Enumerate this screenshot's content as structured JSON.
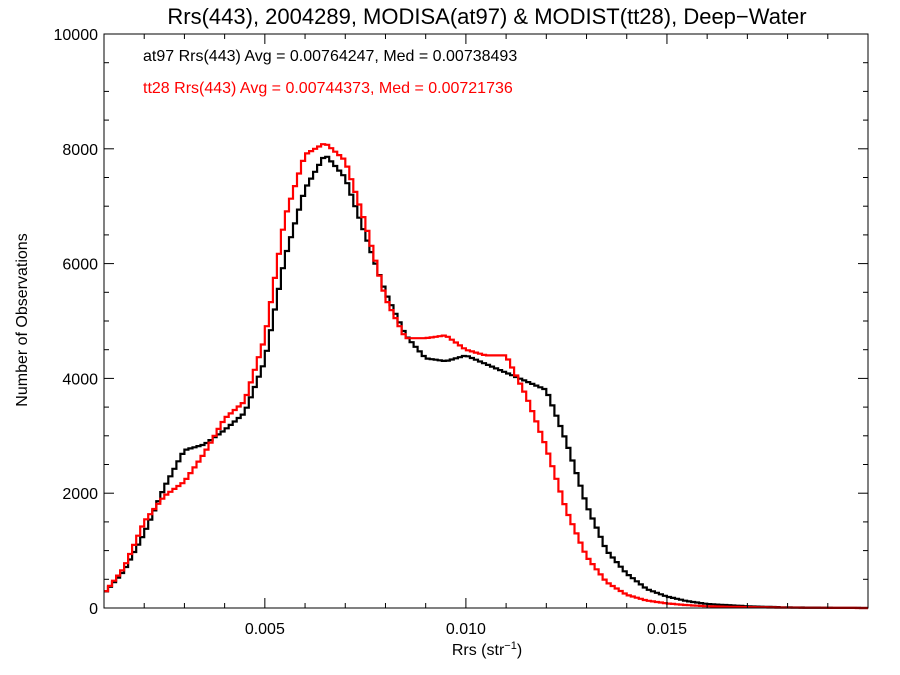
{
  "chart_data": {
    "type": "line",
    "title": "Rrs(443), 2004289, MODISA(at97) & MODIST(tt28), Deep−Water",
    "xlabel": "Rrs (str",
    "xlabel_sup": "−1",
    "xlabel_close": ")",
    "ylabel": "Number of Observations",
    "xlim": [
      0.001,
      0.02
    ],
    "ylim": [
      0,
      10000
    ],
    "x_ticks": [
      0.005,
      0.01,
      0.015
    ],
    "x_tick_labels": [
      "0.005",
      "0.010",
      "0.015"
    ],
    "y_ticks": [
      0,
      2000,
      4000,
      6000,
      8000,
      10000
    ],
    "y_tick_labels": [
      "0",
      "2000",
      "4000",
      "6000",
      "8000",
      "10000"
    ],
    "grid": false,
    "annotations": [
      {
        "text": "at97 Rrs(443) Avg = 0.00764247, Med = 0.00738493",
        "color": "#000000"
      },
      {
        "text": "tt28 Rrs(443) Avg = 0.00744373, Med = 0.00721736",
        "color": "#ff0000"
      }
    ],
    "series": [
      {
        "color": "#000000",
        "points": [
          [
            0.001,
            250
          ],
          [
            0.0015,
            650
          ],
          [
            0.002,
            1300
          ],
          [
            0.0025,
            2100
          ],
          [
            0.003,
            2750
          ],
          [
            0.0035,
            2850
          ],
          [
            0.004,
            3100
          ],
          [
            0.0045,
            3400
          ],
          [
            0.005,
            4300
          ],
          [
            0.0055,
            6100
          ],
          [
            0.006,
            7300
          ],
          [
            0.0065,
            7900
          ],
          [
            0.007,
            7500
          ],
          [
            0.0075,
            6500
          ],
          [
            0.008,
            5500
          ],
          [
            0.0085,
            4750
          ],
          [
            0.009,
            4350
          ],
          [
            0.0095,
            4300
          ],
          [
            0.01,
            4400
          ],
          [
            0.0105,
            4250
          ],
          [
            0.011,
            4100
          ],
          [
            0.0115,
            3950
          ],
          [
            0.012,
            3800
          ],
          [
            0.0125,
            2900
          ],
          [
            0.013,
            1800
          ],
          [
            0.0135,
            1000
          ],
          [
            0.014,
            600
          ],
          [
            0.0145,
            330
          ],
          [
            0.015,
            200
          ],
          [
            0.0155,
            120
          ],
          [
            0.016,
            70
          ],
          [
            0.017,
            30
          ],
          [
            0.018,
            10
          ],
          [
            0.02,
            0
          ]
        ]
      },
      {
        "color": "#ff0000",
        "points": [
          [
            0.001,
            250
          ],
          [
            0.0015,
            700
          ],
          [
            0.002,
            1500
          ],
          [
            0.0025,
            1950
          ],
          [
            0.003,
            2200
          ],
          [
            0.0035,
            2700
          ],
          [
            0.004,
            3300
          ],
          [
            0.0045,
            3600
          ],
          [
            0.005,
            4700
          ],
          [
            0.0055,
            6800
          ],
          [
            0.006,
            7900
          ],
          [
            0.0065,
            8100
          ],
          [
            0.007,
            7800
          ],
          [
            0.0075,
            6700
          ],
          [
            0.008,
            5400
          ],
          [
            0.0085,
            4700
          ],
          [
            0.009,
            4700
          ],
          [
            0.0095,
            4750
          ],
          [
            0.01,
            4500
          ],
          [
            0.0105,
            4400
          ],
          [
            0.011,
            4400
          ],
          [
            0.0115,
            3700
          ],
          [
            0.012,
            2800
          ],
          [
            0.0125,
            1700
          ],
          [
            0.013,
            900
          ],
          [
            0.0135,
            450
          ],
          [
            0.014,
            230
          ],
          [
            0.0145,
            130
          ],
          [
            0.015,
            80
          ],
          [
            0.0155,
            50
          ],
          [
            0.016,
            30
          ],
          [
            0.017,
            15
          ],
          [
            0.018,
            5
          ],
          [
            0.02,
            0
          ]
        ]
      }
    ]
  }
}
